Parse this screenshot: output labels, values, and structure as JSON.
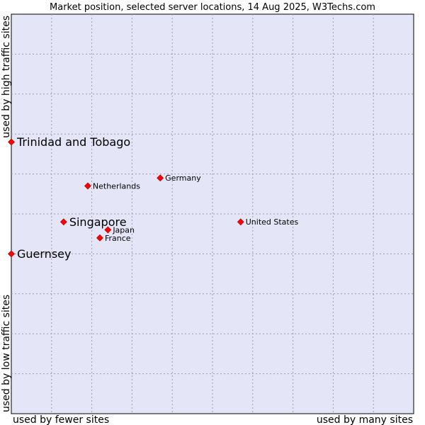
{
  "chart_data": {
    "type": "scatter",
    "title": "Market position, selected server locations, 14 Aug 2025, W3Techs.com",
    "xlabel_left": "used by fewer sites",
    "xlabel_right": "used by many sites",
    "ylabel_bottom": "used by low traffic sites",
    "ylabel_top": "used by high traffic sites",
    "xlim": [
      0,
      10
    ],
    "ylim": [
      0,
      10
    ],
    "grid": true,
    "colors": {
      "plot_background": "#e4e6f8",
      "marker": "#ff0000",
      "grid": "#9a9ab4",
      "text": "#000000"
    },
    "points": [
      {
        "label": "Trinidad and Tobago",
        "x": 0.0,
        "y": 6.8,
        "emphasized": true
      },
      {
        "label": "Guernsey",
        "x": 0.0,
        "y": 4.0,
        "emphasized": true
      },
      {
        "label": "Singapore",
        "x": 1.3,
        "y": 4.8,
        "emphasized": true
      },
      {
        "label": "Netherlands",
        "x": 1.9,
        "y": 5.7,
        "emphasized": false
      },
      {
        "label": "Germany",
        "x": 3.7,
        "y": 5.9,
        "emphasized": false
      },
      {
        "label": "Japan",
        "x": 2.4,
        "y": 4.6,
        "emphasized": false
      },
      {
        "label": "France",
        "x": 2.2,
        "y": 4.4,
        "emphasized": false
      },
      {
        "label": "United States",
        "x": 5.7,
        "y": 4.8,
        "emphasized": false
      }
    ]
  }
}
